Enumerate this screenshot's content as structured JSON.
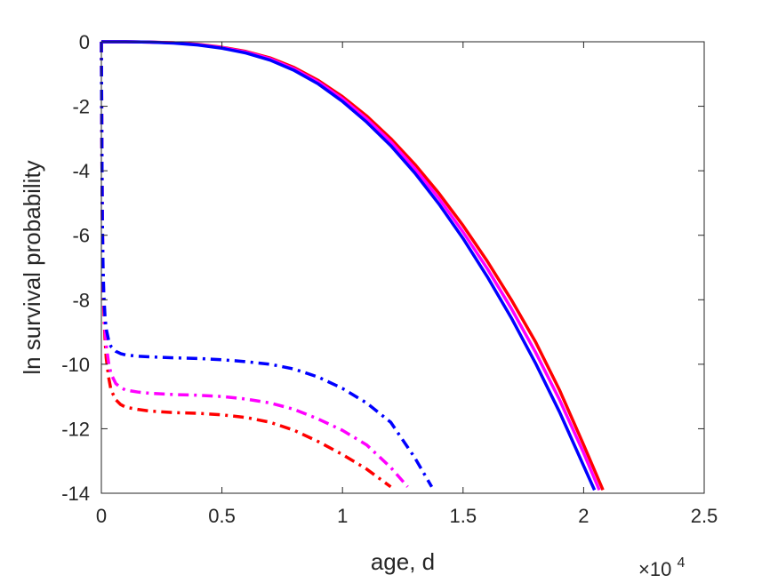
{
  "chart_data": {
    "type": "line",
    "title": "",
    "xlabel": "age, d",
    "ylabel": "ln survival probability",
    "x_exponent_label": {
      "base": "×10",
      "exp": "4"
    },
    "xlim": [
      0,
      2.5
    ],
    "ylim": [
      -14,
      0
    ],
    "x_ticks": [
      0,
      0.5,
      1,
      1.5,
      2,
      2.5
    ],
    "x_tick_labels": [
      "0",
      "0.5",
      "1",
      "1.5",
      "2",
      "2.5"
    ],
    "y_ticks": [
      0,
      -2,
      -4,
      -6,
      -8,
      -10,
      -12,
      -14
    ],
    "y_tick_labels": [
      "0",
      "-2",
      "-4",
      "-6",
      "-8",
      "-10",
      "-12",
      "-14"
    ],
    "grid": false,
    "legend": "none",
    "series": [
      {
        "color": "#ff0000",
        "style": "solid",
        "x": [
          0,
          0.1,
          0.2,
          0.3,
          0.4,
          0.5,
          0.6,
          0.7,
          0.8,
          0.9,
          1.0,
          1.1,
          1.2,
          1.3,
          1.4,
          1.5,
          1.6,
          1.7,
          1.8,
          1.9,
          2.0,
          2.08
        ],
        "y": [
          0,
          0,
          -0.01,
          -0.03,
          -0.08,
          -0.17,
          -0.3,
          -0.5,
          -0.8,
          -1.2,
          -1.7,
          -2.3,
          -3.0,
          -3.8,
          -4.7,
          -5.7,
          -6.8,
          -8.0,
          -9.3,
          -10.8,
          -12.5,
          -13.9
        ]
      },
      {
        "color": "#ff00ff",
        "style": "solid",
        "x": [
          0,
          0.1,
          0.2,
          0.3,
          0.4,
          0.5,
          0.6,
          0.7,
          0.8,
          0.9,
          1.0,
          1.1,
          1.2,
          1.3,
          1.4,
          1.5,
          1.6,
          1.7,
          1.8,
          1.9,
          2.0,
          2.065
        ],
        "y": [
          0,
          0,
          -0.01,
          -0.03,
          -0.09,
          -0.18,
          -0.32,
          -0.53,
          -0.84,
          -1.25,
          -1.77,
          -2.39,
          -3.1,
          -3.93,
          -4.86,
          -5.9,
          -7.03,
          -8.27,
          -9.62,
          -11.1,
          -12.75,
          -13.9
        ]
      },
      {
        "color": "#0000ff",
        "style": "solid",
        "x": [
          0,
          0.1,
          0.2,
          0.3,
          0.4,
          0.5,
          0.6,
          0.7,
          0.8,
          0.9,
          1.0,
          1.1,
          1.2,
          1.3,
          1.4,
          1.5,
          1.6,
          1.7,
          1.8,
          1.9,
          2.0,
          2.045
        ],
        "y": [
          0,
          0,
          -0.01,
          -0.04,
          -0.1,
          -0.2,
          -0.35,
          -0.57,
          -0.89,
          -1.31,
          -1.85,
          -2.49,
          -3.22,
          -4.07,
          -5.03,
          -6.1,
          -7.28,
          -8.56,
          -9.96,
          -11.48,
          -13.15,
          -13.9
        ]
      },
      {
        "color": "#ff0000",
        "style": "dashdot",
        "x": [
          0,
          0.002,
          0.004,
          0.007,
          0.01,
          0.015,
          0.02,
          0.03,
          0.04,
          0.06,
          0.08,
          0.1,
          0.15,
          0.2,
          0.3,
          0.4,
          0.5,
          0.6,
          0.7,
          0.8,
          0.9,
          1.0,
          1.1,
          1.2
        ],
        "y": [
          0,
          -3.0,
          -5.5,
          -7.3,
          -8.3,
          -9.2,
          -9.8,
          -10.4,
          -10.8,
          -11.1,
          -11.25,
          -11.33,
          -11.4,
          -11.45,
          -11.5,
          -11.52,
          -11.57,
          -11.65,
          -11.8,
          -12.05,
          -12.4,
          -12.8,
          -13.25,
          -13.8
        ]
      },
      {
        "color": "#ff00ff",
        "style": "dashdot",
        "x": [
          0,
          0.002,
          0.004,
          0.007,
          0.01,
          0.015,
          0.02,
          0.03,
          0.04,
          0.06,
          0.08,
          0.1,
          0.15,
          0.2,
          0.3,
          0.4,
          0.5,
          0.6,
          0.7,
          0.8,
          0.9,
          1.0,
          1.1,
          1.2,
          1.27
        ],
        "y": [
          0,
          -3.0,
          -5.5,
          -7.1,
          -8.0,
          -8.9,
          -9.4,
          -9.95,
          -10.3,
          -10.6,
          -10.72,
          -10.8,
          -10.86,
          -10.9,
          -10.94,
          -10.96,
          -11.0,
          -11.08,
          -11.2,
          -11.4,
          -11.7,
          -12.05,
          -12.5,
          -13.2,
          -13.8
        ]
      },
      {
        "color": "#0000ff",
        "style": "dashdot",
        "x": [
          0,
          0.002,
          0.004,
          0.007,
          0.01,
          0.015,
          0.02,
          0.03,
          0.04,
          0.06,
          0.08,
          0.1,
          0.15,
          0.2,
          0.3,
          0.4,
          0.5,
          0.6,
          0.7,
          0.8,
          0.9,
          1.0,
          1.1,
          1.2,
          1.3,
          1.37
        ],
        "y": [
          0,
          -3.0,
          -5.5,
          -7.0,
          -7.8,
          -8.5,
          -8.9,
          -9.25,
          -9.45,
          -9.6,
          -9.67,
          -9.71,
          -9.75,
          -9.77,
          -9.8,
          -9.82,
          -9.86,
          -9.92,
          -10.0,
          -10.15,
          -10.4,
          -10.75,
          -11.2,
          -11.8,
          -12.9,
          -13.8
        ]
      }
    ]
  }
}
